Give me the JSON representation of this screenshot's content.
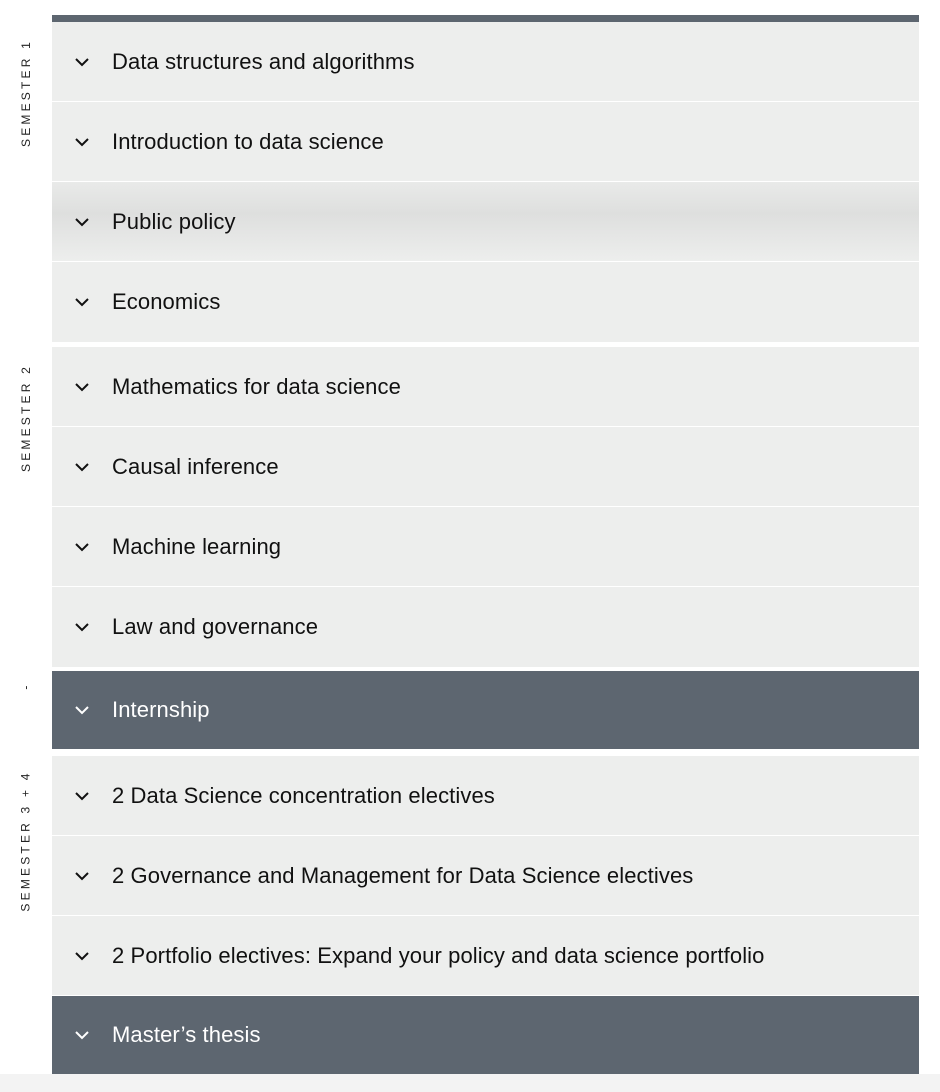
{
  "groups": [
    {
      "label": "SEMESTER 1",
      "items": [
        {
          "label": "Data structures and algorithms",
          "style": "light"
        },
        {
          "label": "Introduction to data science",
          "style": "light"
        },
        {
          "label": "Public policy",
          "style": "hover"
        },
        {
          "label": "Economics",
          "style": "light"
        }
      ]
    },
    {
      "label": "SEMESTER 2",
      "items": [
        {
          "label": "Mathematics for data science",
          "style": "light"
        },
        {
          "label": "Causal inference",
          "style": "light"
        },
        {
          "label": "Machine learning",
          "style": "light"
        },
        {
          "label": "Law and governance",
          "style": "light"
        }
      ]
    },
    {
      "label": "-",
      "items": [
        {
          "label": "Internship",
          "style": "dark"
        }
      ]
    },
    {
      "label": "SEMESTER 3 + 4",
      "items": [
        {
          "label": "2 Data Science concentration electives",
          "style": "light"
        },
        {
          "label": "2 Governance and Management for Data Science electives",
          "style": "light"
        },
        {
          "label": "2 Portfolio electives: Expand your policy and data science portfolio",
          "style": "light"
        },
        {
          "label": "Master’s thesis",
          "style": "dark"
        }
      ]
    }
  ],
  "icons": {
    "row_toggle": "chevron-down-icon"
  },
  "colors": {
    "row_light": "#edeeed",
    "row_dark": "#5d6670",
    "text_dark": "#111111",
    "text_light": "#ffffff"
  }
}
